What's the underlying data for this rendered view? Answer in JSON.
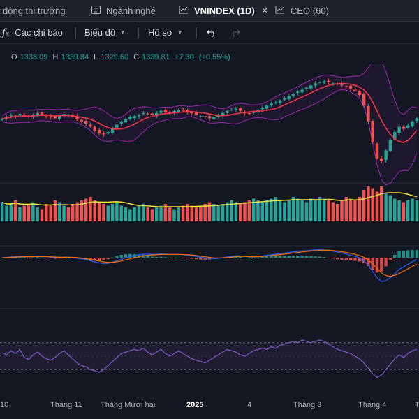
{
  "tabs": [
    {
      "label": "động thị trường",
      "icon": "none"
    },
    {
      "label": "Ngành nghề",
      "icon": "list-icon"
    },
    {
      "label": "VNINDEX (1D)",
      "icon": "chart-icon",
      "active": true,
      "close": "×"
    },
    {
      "label": "CEO (60)",
      "icon": "chart-icon"
    }
  ],
  "toolbar": {
    "indicators_label": "Các chỉ báo",
    "chart_type_label": "Biểu đồ",
    "profile_label": "Hồ sơ",
    "undo_icon": "undo-icon",
    "redo_icon": "redo-icon",
    "indicator_icon": "fx-icon"
  },
  "ohlc": {
    "o": "1338.09",
    "h": "1339.84",
    "l": "1329.60",
    "c": "1339.81",
    "change": "+7.30",
    "change_pct": "(+0.55%)"
  },
  "colors": {
    "up": "#26a69a",
    "down": "#ef5350",
    "bollinger": "#9c27b0",
    "ma": "#f23645",
    "volume_ma": "#ffeb3b",
    "macd": "#2962ff",
    "signal": "#ff6d00",
    "rsi": "#7e57c2",
    "background": "#131722"
  },
  "chart_data": {
    "type": "candlestick",
    "symbol": "VNINDEX",
    "interval": "1D",
    "x_tick_labels": [
      "10",
      "Tháng 11",
      "Tháng Mười hai",
      "2025",
      "4",
      "Tháng 3",
      "Tháng 4",
      "T"
    ],
    "x_tick_label_bold": [
      false,
      false,
      false,
      true,
      false,
      false,
      false,
      false
    ],
    "close_profile": [
      1255,
      1258,
      1262,
      1260,
      1264,
      1261,
      1258,
      1262,
      1266,
      1263,
      1260,
      1258,
      1256,
      1260,
      1264,
      1262,
      1258,
      1254,
      1250,
      1246,
      1240,
      1232,
      1228,
      1226,
      1230,
      1238,
      1244,
      1250,
      1254,
      1258,
      1260,
      1262,
      1266,
      1264,
      1262,
      1266,
      1270,
      1268,
      1266,
      1270,
      1272,
      1270,
      1268,
      1266,
      1262,
      1260,
      1258,
      1256,
      1258,
      1262,
      1266,
      1270,
      1272,
      1274,
      1270,
      1266,
      1264,
      1268,
      1272,
      1276,
      1280,
      1284,
      1286,
      1290,
      1294,
      1298,
      1302,
      1306,
      1310,
      1314,
      1318,
      1322,
      1324,
      1326,
      1324,
      1322,
      1320,
      1318,
      1316,
      1312,
      1308,
      1300,
      1280,
      1250,
      1210,
      1180,
      1175,
      1195,
      1215,
      1230,
      1240,
      1236,
      1242,
      1250,
      1256
    ],
    "volume_profile": [
      0.55,
      0.45,
      0.5,
      0.6,
      0.4,
      0.45,
      0.5,
      0.55,
      0.4,
      0.35,
      0.5,
      0.45,
      0.6,
      0.55,
      0.45,
      0.4,
      0.5,
      0.55,
      0.6,
      0.65,
      0.7,
      0.6,
      0.55,
      0.5,
      0.45,
      0.5,
      0.55,
      0.45,
      0.4,
      0.35,
      0.4,
      0.45,
      0.5,
      0.4,
      0.35,
      0.4,
      0.45,
      0.5,
      0.4,
      0.35,
      0.4,
      0.45,
      0.5,
      0.45,
      0.4,
      0.45,
      0.5,
      0.55,
      0.5,
      0.45,
      0.5,
      0.55,
      0.6,
      0.55,
      0.5,
      0.55,
      0.6,
      0.65,
      0.6,
      0.55,
      0.6,
      0.65,
      0.7,
      0.6,
      0.55,
      0.6,
      0.7,
      0.65,
      0.6,
      0.55,
      0.65,
      0.6,
      0.7,
      0.65,
      0.6,
      0.55,
      0.5,
      0.6,
      0.7,
      0.65,
      0.6,
      0.7,
      0.9,
      1.0,
      0.95,
      0.85,
      1.0,
      0.8,
      0.75,
      0.65,
      0.6,
      0.55,
      0.6,
      0.65,
      0.6
    ],
    "rsi_profile": [
      55,
      52,
      58,
      54,
      60,
      48,
      45,
      52,
      56,
      50,
      46,
      44,
      48,
      54,
      58,
      52,
      46,
      40,
      36,
      34,
      30,
      28,
      26,
      30,
      36,
      42,
      48,
      54,
      56,
      58,
      60,
      58,
      62,
      56,
      52,
      56,
      60,
      54,
      50,
      54,
      58,
      54,
      50,
      46,
      44,
      42,
      40,
      44,
      48,
      52,
      56,
      60,
      58,
      56,
      52,
      50,
      54,
      58,
      60,
      62,
      60,
      64,
      62,
      66,
      68,
      70,
      72,
      70,
      74,
      72,
      70,
      72,
      74,
      72,
      68,
      64,
      60,
      58,
      56,
      54,
      50,
      46,
      40,
      32,
      24,
      18,
      22,
      30,
      38,
      46,
      52,
      48,
      54,
      58,
      60
    ]
  }
}
